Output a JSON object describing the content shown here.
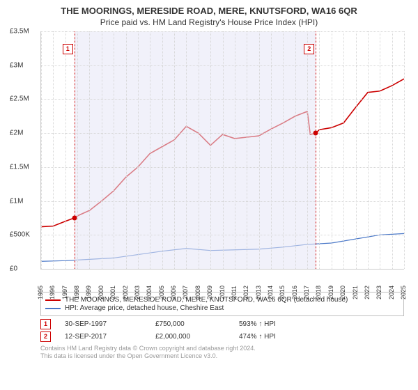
{
  "title": "THE MOORINGS, MERESIDE ROAD, MERE, KNUTSFORD, WA16 6QR",
  "subtitle": "Price paid vs. HM Land Registry's House Price Index (HPI)",
  "chart": {
    "type": "line",
    "background_color": "#ffffff",
    "grid_color": "#d6d6d6",
    "shade_color": "rgba(230,230,245,0.55)",
    "y": {
      "min": 0,
      "max": 3500000,
      "step": 500000,
      "labels": [
        "£0",
        "£500K",
        "£1M",
        "£1.5M",
        "£2M",
        "£2.5M",
        "£3M",
        "£3.5M"
      ]
    },
    "x": {
      "min": 1995,
      "max": 2025,
      "labels": [
        "1995",
        "1996",
        "1997",
        "1998",
        "1999",
        "2000",
        "2001",
        "2002",
        "2003",
        "2004",
        "2005",
        "2006",
        "2007",
        "2008",
        "2009",
        "2010",
        "2011",
        "2012",
        "2013",
        "2014",
        "2015",
        "2016",
        "2017",
        "2018",
        "2019",
        "2020",
        "2021",
        "2022",
        "2023",
        "2024",
        "2025"
      ]
    },
    "series": [
      {
        "name": "THE MOORINGS, MERESIDE ROAD, MERE, KNUTSFORD, WA16 6QR (detached house)",
        "color": "#cc0000",
        "width": 1.6,
        "data": [
          [
            1995,
            620000
          ],
          [
            1996,
            630000
          ],
          [
            1997,
            700000
          ],
          [
            1997.75,
            750000
          ],
          [
            1998,
            780000
          ],
          [
            1999,
            860000
          ],
          [
            2000,
            1000000
          ],
          [
            2001,
            1150000
          ],
          [
            2002,
            1350000
          ],
          [
            2003,
            1500000
          ],
          [
            2004,
            1700000
          ],
          [
            2005,
            1800000
          ],
          [
            2006,
            1900000
          ],
          [
            2007,
            2100000
          ],
          [
            2008,
            2000000
          ],
          [
            2009,
            1820000
          ],
          [
            2010,
            1980000
          ],
          [
            2011,
            1920000
          ],
          [
            2012,
            1940000
          ],
          [
            2013,
            1960000
          ],
          [
            2014,
            2060000
          ],
          [
            2015,
            2150000
          ],
          [
            2016,
            2250000
          ],
          [
            2017,
            2320000
          ],
          [
            2017.25,
            1980000
          ],
          [
            2017.7,
            2000000
          ],
          [
            2018,
            2050000
          ],
          [
            2019,
            2080000
          ],
          [
            2020,
            2150000
          ],
          [
            2021,
            2380000
          ],
          [
            2022,
            2600000
          ],
          [
            2023,
            2620000
          ],
          [
            2024,
            2700000
          ],
          [
            2025,
            2800000
          ]
        ]
      },
      {
        "name": "HPI: Average price, detached house, Cheshire East",
        "color": "#4a78c8",
        "width": 1.2,
        "data": [
          [
            1995,
            110000
          ],
          [
            1997,
            120000
          ],
          [
            1999,
            140000
          ],
          [
            2001,
            160000
          ],
          [
            2003,
            210000
          ],
          [
            2005,
            260000
          ],
          [
            2007,
            300000
          ],
          [
            2009,
            270000
          ],
          [
            2011,
            280000
          ],
          [
            2013,
            290000
          ],
          [
            2015,
            320000
          ],
          [
            2017,
            360000
          ],
          [
            2019,
            380000
          ],
          [
            2021,
            440000
          ],
          [
            2023,
            500000
          ],
          [
            2025,
            520000
          ]
        ]
      }
    ],
    "shade_ranges": [
      [
        1997.75,
        2017.7
      ]
    ],
    "events": [
      {
        "n": "1",
        "x": 1997.75,
        "color": "#cc0000",
        "marker_y": 750000
      },
      {
        "n": "2",
        "x": 2017.7,
        "color": "#cc0000",
        "marker_y": 2000000
      }
    ]
  },
  "legend": {
    "items": [
      {
        "color": "#cc0000",
        "label": "THE MOORINGS, MERESIDE ROAD, MERE, KNUTSFORD, WA16 6QR (detached house)"
      },
      {
        "color": "#4a78c8",
        "label": "HPI: Average price, detached house, Cheshire East"
      }
    ]
  },
  "events_table": [
    {
      "n": "1",
      "date": "30-SEP-1997",
      "price": "£750,000",
      "pct": "593% ↑ HPI"
    },
    {
      "n": "2",
      "date": "12-SEP-2017",
      "price": "£2,000,000",
      "pct": "474% ↑ HPI"
    }
  ],
  "footer": {
    "line1": "Contains HM Land Registry data © Crown copyright and database right 2024.",
    "line2": "This data is licensed under the Open Government Licence v3.0."
  }
}
